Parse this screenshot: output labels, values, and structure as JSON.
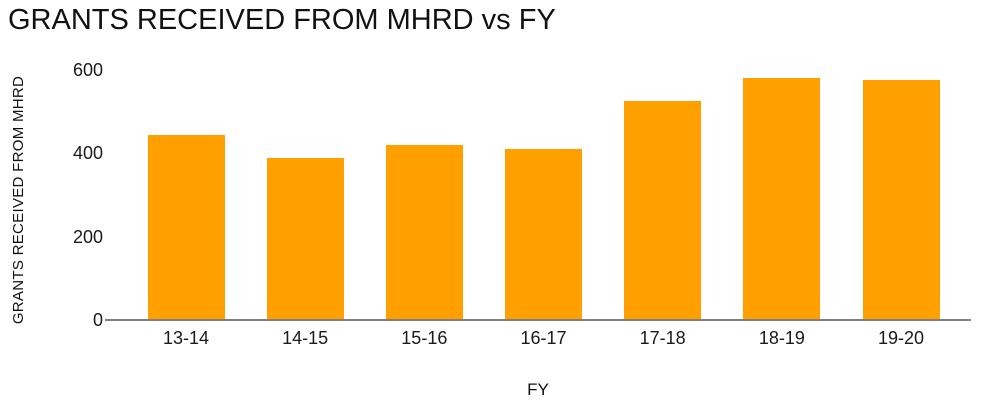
{
  "chart_data": {
    "type": "bar",
    "title": "GRANTS RECEIVED FROM MHRD vs FY",
    "xlabel": "FY",
    "ylabel": "GRANTS RECEIVED FROM MHRD",
    "categories": [
      "13-14",
      "14-15",
      "15-16",
      "16-17",
      "17-18",
      "18-19",
      "19-20"
    ],
    "values": [
      445,
      390,
      420,
      410,
      525,
      580,
      575
    ],
    "yticks": [
      0,
      200,
      400,
      600
    ],
    "ylim": [
      0,
      600
    ],
    "grid": false,
    "legend": false,
    "colors": {
      "bar": "#FFA000",
      "axis_line": "#808080",
      "text": "#1a1a1a"
    }
  }
}
